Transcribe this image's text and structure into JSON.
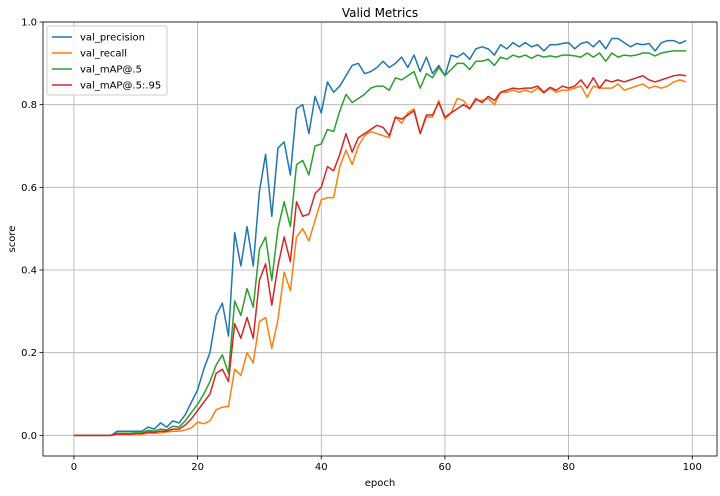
{
  "chart_data": {
    "type": "line",
    "title": "Valid Metrics",
    "xlabel": "epoch",
    "ylabel": "score",
    "xlim": [
      -5,
      104
    ],
    "ylim": [
      -0.05,
      1.0
    ],
    "xticks": [
      0,
      20,
      40,
      60,
      80,
      100
    ],
    "yticks": [
      0.0,
      0.2,
      0.4,
      0.6,
      0.8,
      1.0
    ],
    "xtick_labels": [
      "0",
      "20",
      "40",
      "60",
      "80",
      "100"
    ],
    "ytick_labels": [
      "0.0",
      "0.2",
      "0.4",
      "0.6",
      "0.8",
      "1.0"
    ],
    "grid": true,
    "legend_position": "top-left",
    "x": [
      0,
      1,
      2,
      3,
      4,
      5,
      6,
      7,
      8,
      9,
      10,
      11,
      12,
      13,
      14,
      15,
      16,
      17,
      18,
      19,
      20,
      21,
      22,
      23,
      24,
      25,
      26,
      27,
      28,
      29,
      30,
      31,
      32,
      33,
      34,
      35,
      36,
      37,
      38,
      39,
      40,
      41,
      42,
      43,
      44,
      45,
      46,
      47,
      48,
      49,
      50,
      51,
      52,
      53,
      54,
      55,
      56,
      57,
      58,
      59,
      60,
      61,
      62,
      63,
      64,
      65,
      66,
      67,
      68,
      69,
      70,
      71,
      72,
      73,
      74,
      75,
      76,
      77,
      78,
      79,
      80,
      81,
      82,
      83,
      84,
      85,
      86,
      87,
      88,
      89,
      90,
      91,
      92,
      93,
      94,
      95,
      96,
      97,
      98,
      99
    ],
    "series": [
      {
        "name": "val_precision",
        "color": "#1f77b4",
        "values": [
          0,
          0,
          0,
          0,
          0,
          0,
          0,
          0.01,
          0.01,
          0.01,
          0.01,
          0.01,
          0.02,
          0.015,
          0.03,
          0.02,
          0.035,
          0.03,
          0.05,
          0.08,
          0.11,
          0.16,
          0.2,
          0.29,
          0.32,
          0.24,
          0.49,
          0.41,
          0.505,
          0.41,
          0.59,
          0.68,
          0.53,
          0.695,
          0.71,
          0.63,
          0.79,
          0.8,
          0.73,
          0.82,
          0.78,
          0.855,
          0.83,
          0.845,
          0.87,
          0.895,
          0.9,
          0.875,
          0.88,
          0.89,
          0.905,
          0.89,
          0.9,
          0.915,
          0.89,
          0.92,
          0.88,
          0.915,
          0.875,
          0.895,
          0.87,
          0.92,
          0.915,
          0.925,
          0.91,
          0.935,
          0.94,
          0.935,
          0.92,
          0.945,
          0.935,
          0.95,
          0.94,
          0.95,
          0.94,
          0.945,
          0.93,
          0.945,
          0.945,
          0.948,
          0.95,
          0.935,
          0.948,
          0.952,
          0.94,
          0.955,
          0.935,
          0.96,
          0.96,
          0.95,
          0.94,
          0.948,
          0.945,
          0.948,
          0.93,
          0.95,
          0.955,
          0.955,
          0.948,
          0.955
        ]
      },
      {
        "name": "val_recall",
        "color": "#ff7f0e",
        "values": [
          0,
          0,
          0,
          0,
          0,
          0,
          0,
          0.002,
          0.002,
          0.002,
          0.003,
          0.003,
          0.005,
          0.005,
          0.006,
          0.008,
          0.01,
          0.01,
          0.013,
          0.018,
          0.032,
          0.028,
          0.035,
          0.062,
          0.068,
          0.07,
          0.16,
          0.145,
          0.2,
          0.175,
          0.275,
          0.285,
          0.21,
          0.28,
          0.395,
          0.35,
          0.48,
          0.5,
          0.47,
          0.52,
          0.57,
          0.575,
          0.575,
          0.65,
          0.69,
          0.655,
          0.7,
          0.725,
          0.735,
          0.73,
          0.725,
          0.72,
          0.77,
          0.755,
          0.78,
          0.79,
          0.73,
          0.77,
          0.77,
          0.81,
          0.765,
          0.78,
          0.815,
          0.81,
          0.79,
          0.81,
          0.81,
          0.815,
          0.8,
          0.83,
          0.83,
          0.835,
          0.83,
          0.835,
          0.83,
          0.84,
          0.828,
          0.84,
          0.83,
          0.835,
          0.835,
          0.84,
          0.845,
          0.818,
          0.845,
          0.84,
          0.84,
          0.84,
          0.85,
          0.835,
          0.84,
          0.845,
          0.85,
          0.84,
          0.845,
          0.84,
          0.845,
          0.855,
          0.86,
          0.855
        ]
      },
      {
        "name": "val_mAP@.5",
        "color": "#2ca02c",
        "values": [
          0,
          0,
          0,
          0,
          0,
          0,
          0,
          0.005,
          0.005,
          0.005,
          0.006,
          0.006,
          0.012,
          0.01,
          0.015,
          0.013,
          0.022,
          0.02,
          0.035,
          0.055,
          0.075,
          0.1,
          0.13,
          0.17,
          0.195,
          0.15,
          0.325,
          0.29,
          0.355,
          0.31,
          0.45,
          0.48,
          0.375,
          0.5,
          0.565,
          0.505,
          0.655,
          0.665,
          0.63,
          0.7,
          0.705,
          0.74,
          0.735,
          0.785,
          0.825,
          0.805,
          0.815,
          0.825,
          0.84,
          0.845,
          0.845,
          0.835,
          0.865,
          0.86,
          0.87,
          0.88,
          0.84,
          0.875,
          0.865,
          0.89,
          0.87,
          0.885,
          0.9,
          0.9,
          0.885,
          0.905,
          0.905,
          0.91,
          0.895,
          0.915,
          0.91,
          0.92,
          0.915,
          0.92,
          0.912,
          0.92,
          0.915,
          0.918,
          0.915,
          0.92,
          0.92,
          0.918,
          0.915,
          0.925,
          0.915,
          0.925,
          0.905,
          0.925,
          0.915,
          0.92,
          0.918,
          0.92,
          0.925,
          0.925,
          0.918,
          0.925,
          0.928,
          0.93,
          0.93,
          0.93
        ]
      },
      {
        "name": "val_mAP@.5:.95",
        "color": "#d62728",
        "values": [
          0,
          0,
          0,
          0,
          0,
          0,
          0,
          0.003,
          0.003,
          0.003,
          0.004,
          0.004,
          0.008,
          0.007,
          0.01,
          0.01,
          0.015,
          0.015,
          0.025,
          0.04,
          0.06,
          0.08,
          0.1,
          0.15,
          0.16,
          0.13,
          0.27,
          0.235,
          0.285,
          0.235,
          0.375,
          0.415,
          0.315,
          0.41,
          0.48,
          0.42,
          0.565,
          0.53,
          0.535,
          0.585,
          0.6,
          0.65,
          0.64,
          0.68,
          0.73,
          0.685,
          0.72,
          0.73,
          0.74,
          0.75,
          0.745,
          0.725,
          0.77,
          0.765,
          0.775,
          0.785,
          0.73,
          0.775,
          0.775,
          0.805,
          0.77,
          0.78,
          0.79,
          0.8,
          0.79,
          0.815,
          0.805,
          0.82,
          0.81,
          0.83,
          0.835,
          0.84,
          0.838,
          0.84,
          0.84,
          0.845,
          0.83,
          0.842,
          0.835,
          0.845,
          0.84,
          0.845,
          0.86,
          0.84,
          0.865,
          0.84,
          0.86,
          0.855,
          0.86,
          0.855,
          0.86,
          0.865,
          0.87,
          0.86,
          0.855,
          0.86,
          0.865,
          0.87,
          0.872,
          0.87
        ]
      }
    ]
  }
}
